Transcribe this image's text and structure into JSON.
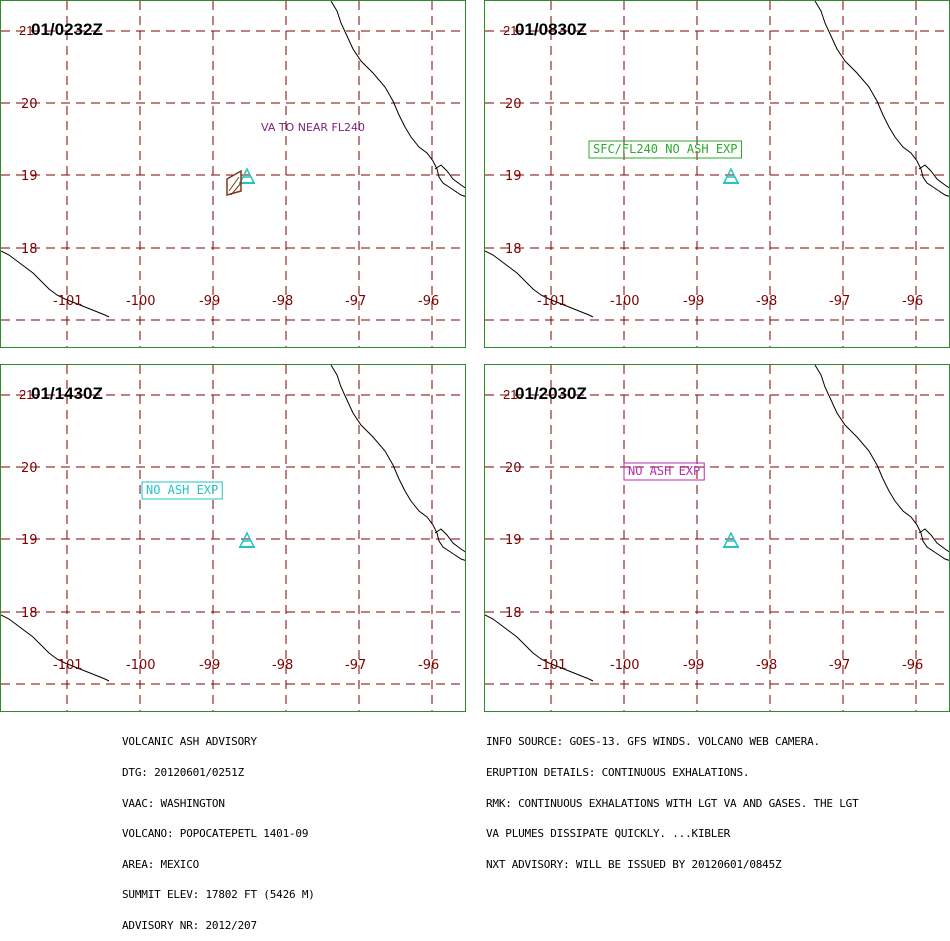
{
  "panels": [
    {
      "time": "01/0232Z",
      "time_prefix": "21",
      "lat_labels": [
        "20",
        "19",
        "18"
      ],
      "lon_labels": [
        "-101",
        "-100",
        "-99",
        "-98",
        "-97",
        "-96"
      ],
      "annotation": {
        "text": "VA TO NEAR FL240",
        "color": "#7a1f7a",
        "boxed": false
      }
    },
    {
      "time": "01/0830Z",
      "time_prefix": "21",
      "lat_labels": [
        "20",
        "19",
        "18"
      ],
      "lon_labels": [
        "-101",
        "-100",
        "-99",
        "-98",
        "-97",
        "-96"
      ],
      "annotation": {
        "text": "SFC/FL240 NO ASH EXP",
        "color": "#2ea82e",
        "boxed": true
      }
    },
    {
      "time": "01/1430Z",
      "time_prefix": "21",
      "lat_labels": [
        "20",
        "19",
        "18"
      ],
      "lon_labels": [
        "-101",
        "-100",
        "-99",
        "-98",
        "-97",
        "-96"
      ],
      "annotation": {
        "text": "NO ASH EXP",
        "color": "#22c4c4",
        "boxed": true
      }
    },
    {
      "time": "01/2030Z",
      "time_prefix": "21",
      "lat_labels": [
        "20",
        "19",
        "18"
      ],
      "lon_labels": [
        "-101",
        "-100",
        "-99",
        "-98",
        "-97",
        "-96"
      ],
      "annotation": {
        "text": "NO ASH EXP",
        "color": "#b030b0",
        "boxed": true
      }
    }
  ],
  "advisory_left": [
    "VOLCANIC ASH ADVISORY",
    "DTG: 20120601/0251Z",
    "VAAC: WASHINGTON",
    "VOLCANO: POPOCATEPETL 1401-09",
    "AREA: MEXICO",
    "SUMMIT ELEV: 17802 FT (5426 M)",
    "ADVISORY NR: 2012/207"
  ],
  "advisory_right": [
    "INFO SOURCE: GOES-13. GFS WINDS. VOLCANO WEB CAMERA.",
    "ERUPTION DETAILS: CONTINUOUS EXHALATIONS.",
    "RMK: CONTINUOUS EXHALATIONS WITH LGT VA AND GASES. THE LGT",
    "VA PLUMES DISSIPATE QUICKLY. ...KIBLER",
    "NXT ADVISORY: WILL BE ISSUED BY 20120601/0845Z"
  ],
  "colors": {
    "grid": "#800000",
    "frame": "#2e8b2e",
    "volcano_icon": "#22c4c4",
    "ash_polygon": "#7a3a1a"
  },
  "icons": {
    "volcano": "volcano-icon"
  }
}
